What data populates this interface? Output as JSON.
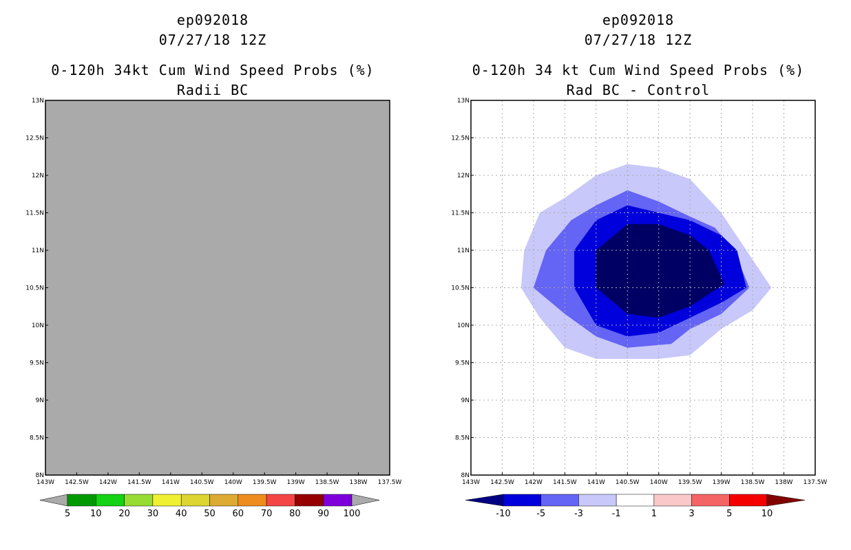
{
  "chart_data": [
    {
      "type": "heatmap",
      "storm_id": "ep092018",
      "date_label": "07/27/18 12Z",
      "title": "0-120h 34kt Cum Wind Speed Probs (%)",
      "subtitle": "Radii BC",
      "x_ticks": [
        "143W",
        "142.5W",
        "142W",
        "141.5W",
        "141W",
        "140.5W",
        "140W",
        "139.5W",
        "139W",
        "138.5W",
        "138W",
        "137.5W"
      ],
      "y_ticks": [
        "8N",
        "8.5N",
        "9N",
        "9.5N",
        "10N",
        "10.5N",
        "11N",
        "11.5N",
        "12N",
        "12.5N",
        "13N"
      ],
      "xlim": [
        -143,
        -137.5
      ],
      "ylim": [
        8,
        13
      ],
      "grid": false,
      "background_fill": "#aaaaaa",
      "field_description": "no probabilities above 5% (uniform gray field)",
      "colorbar": {
        "labels": [
          "5",
          "10",
          "20",
          "30",
          "40",
          "50",
          "60",
          "70",
          "80",
          "90",
          "100"
        ],
        "colors": [
          "#009a00",
          "#14d214",
          "#96dc32",
          "#f0f032",
          "#ddd532",
          "#ddaa32",
          "#ee8c1e",
          "#f54646",
          "#960000",
          "#7d00dc"
        ],
        "left_arrow_color": "#aaaaaa",
        "right_arrow_color": "#aaaaaa"
      },
      "series": []
    },
    {
      "type": "heatmap",
      "storm_id": "ep092018",
      "date_label": "07/27/18 12Z",
      "title": "0-120h 34 kt Cum Wind Speed Probs (%)",
      "subtitle": "Rad BC - Control",
      "x_ticks": [
        "143W",
        "142.5W",
        "142W",
        "141.5W",
        "141W",
        "140.5W",
        "140W",
        "139.5W",
        "139W",
        "138.5W",
        "138W",
        "137.5W"
      ],
      "y_ticks": [
        "8N",
        "8.5N",
        "9N",
        "9.5N",
        "10N",
        "10.5N",
        "11N",
        "11.5N",
        "12N",
        "12.5N",
        "13N"
      ],
      "xlim": [
        -143,
        -137.5
      ],
      "ylim": [
        8,
        13
      ],
      "grid": true,
      "background_fill": "#ffffff",
      "colorbar": {
        "labels": [
          "-10",
          "-5",
          "-3",
          "-1",
          "1",
          "3",
          "5",
          "10"
        ],
        "colors": [
          "#0000dc",
          "#6464f5",
          "#c8c8fa",
          "#ffffff",
          "#fac8c8",
          "#f56464",
          "#f50000"
        ],
        "left_arrow_color": "#000082",
        "right_arrow_color": "#820000"
      },
      "series": [
        {
          "name": "-1 to -3",
          "color": "#c8c8fa",
          "contour": [
            [
              -141.5,
              11.7
            ],
            [
              -141.0,
              12.0
            ],
            [
              -140.5,
              12.15
            ],
            [
              -140.0,
              12.1
            ],
            [
              -139.5,
              11.95
            ],
            [
              -139.0,
              11.5
            ],
            [
              -138.6,
              11.0
            ],
            [
              -138.2,
              10.5
            ],
            [
              -138.5,
              10.2
            ],
            [
              -139.0,
              9.95
            ],
            [
              -139.5,
              9.6
            ],
            [
              -140.0,
              9.55
            ],
            [
              -140.5,
              9.55
            ],
            [
              -141.0,
              9.55
            ],
            [
              -141.5,
              9.7
            ],
            [
              -141.9,
              10.1
            ],
            [
              -142.2,
              10.5
            ],
            [
              -142.15,
              11.0
            ],
            [
              -141.9,
              11.5
            ]
          ]
        },
        {
          "name": "-3 to -5",
          "color": "#6464f5",
          "contour": [
            [
              -141.0,
              11.6
            ],
            [
              -140.5,
              11.8
            ],
            [
              -140.0,
              11.65
            ],
            [
              -139.5,
              11.45
            ],
            [
              -139.1,
              11.3
            ],
            [
              -138.8,
              11.0
            ],
            [
              -138.55,
              10.5
            ],
            [
              -139.0,
              10.15
            ],
            [
              -139.5,
              9.95
            ],
            [
              -139.8,
              9.75
            ],
            [
              -140.5,
              9.7
            ],
            [
              -141.0,
              9.85
            ],
            [
              -141.5,
              10.15
            ],
            [
              -142.0,
              10.5
            ],
            [
              -141.8,
              11.0
            ],
            [
              -141.4,
              11.4
            ]
          ]
        },
        {
          "name": "-5 to -10",
          "color": "#0000dc",
          "contour": [
            [
              -141.0,
              11.4
            ],
            [
              -140.5,
              11.6
            ],
            [
              -140.0,
              11.5
            ],
            [
              -139.5,
              11.4
            ],
            [
              -139.0,
              11.2
            ],
            [
              -138.75,
              11.0
            ],
            [
              -138.6,
              10.5
            ],
            [
              -139.0,
              10.3
            ],
            [
              -139.5,
              10.1
            ],
            [
              -140.0,
              9.9
            ],
            [
              -140.5,
              9.85
            ],
            [
              -141.0,
              10.0
            ],
            [
              -141.35,
              10.5
            ],
            [
              -141.35,
              11.0
            ]
          ]
        },
        {
          "name": "below -10",
          "color": "#000064",
          "contour": [
            [
              -140.5,
              11.35
            ],
            [
              -140.0,
              11.35
            ],
            [
              -139.5,
              11.2
            ],
            [
              -139.2,
              11.0
            ],
            [
              -138.95,
              10.55
            ],
            [
              -139.5,
              10.25
            ],
            [
              -140.0,
              10.1
            ],
            [
              -140.5,
              10.15
            ],
            [
              -141.0,
              10.5
            ],
            [
              -141.0,
              11.0
            ]
          ]
        }
      ]
    }
  ]
}
